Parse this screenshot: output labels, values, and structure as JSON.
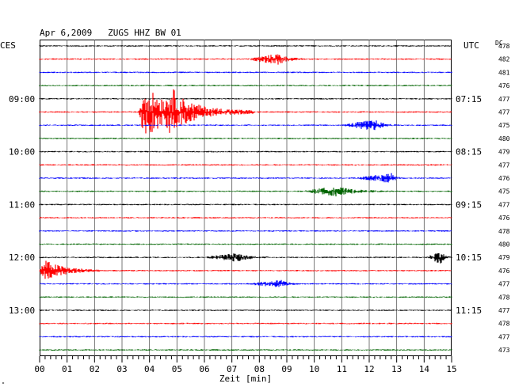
{
  "chart_data": {
    "type": "line",
    "title": "Apr 6,2009   ZUGS HHZ BW 01",
    "left_tz": "CES",
    "right_tz": "UTC",
    "dc_label": "DC",
    "xlabel": "Zeit [min]",
    "x_ticks": [
      "00",
      "01",
      "02",
      "03",
      "04",
      "05",
      "06",
      "07",
      "08",
      "09",
      "10",
      "11",
      "12",
      "13",
      "14",
      "15"
    ],
    "xlim": [
      0,
      15
    ],
    "grid": true,
    "trace_colors": [
      "#000000",
      "#ff0000",
      "#0000ff",
      "#006400"
    ],
    "left_time_labels": [
      {
        "trace": 4,
        "text": "09:00"
      },
      {
        "trace": 8,
        "text": "10:00"
      },
      {
        "trace": 12,
        "text": "11:00"
      },
      {
        "trace": 16,
        "text": "12:00"
      },
      {
        "trace": 20,
        "text": "13:00"
      }
    ],
    "right_time_labels": [
      {
        "trace": 4,
        "text": "07:15"
      },
      {
        "trace": 8,
        "text": "08:15"
      },
      {
        "trace": 12,
        "text": "09:15"
      },
      {
        "trace": 16,
        "text": "10:15"
      },
      {
        "trace": 20,
        "text": "11:15"
      }
    ],
    "dc_values": [
      "478",
      "482",
      "481",
      "476",
      "477",
      "477",
      "475",
      "480",
      "479",
      "477",
      "476",
      "475",
      "477",
      "476",
      "478",
      "480",
      "479",
      "476",
      "477",
      "478",
      "477",
      "478",
      "477",
      "473"
    ],
    "events": [
      {
        "trace": 1,
        "start_min": 7.6,
        "peak_min": 8.7,
        "end_min": 9.6,
        "amp": 0.8
      },
      {
        "trace": 5,
        "start_min": 3.6,
        "peak_min": 3.8,
        "end_min": 7.8,
        "amp": 3.8
      },
      {
        "trace": 5,
        "start_min": 4.6,
        "peak_min": 4.8,
        "end_min": 6.0,
        "amp": 2.2
      },
      {
        "trace": 6,
        "start_min": 11.0,
        "peak_min": 12.2,
        "end_min": 13.0,
        "amp": 0.8
      },
      {
        "trace": 10,
        "start_min": 11.5,
        "peak_min": 12.8,
        "end_min": 13.2,
        "amp": 0.7
      },
      {
        "trace": 11,
        "start_min": 9.6,
        "peak_min": 10.8,
        "end_min": 12.5,
        "amp": 0.7
      },
      {
        "trace": 16,
        "start_min": 6.0,
        "peak_min": 7.2,
        "end_min": 8.3,
        "amp": 0.6
      },
      {
        "trace": 16,
        "start_min": 14.1,
        "peak_min": 14.6,
        "end_min": 15.0,
        "amp": 1.0
      },
      {
        "trace": 17,
        "start_min": 0.0,
        "peak_min": 0.2,
        "end_min": 2.2,
        "amp": 1.6
      },
      {
        "trace": 18,
        "start_min": 7.6,
        "peak_min": 8.8,
        "end_min": 9.4,
        "amp": 0.5
      }
    ],
    "footnote": "\""
  }
}
